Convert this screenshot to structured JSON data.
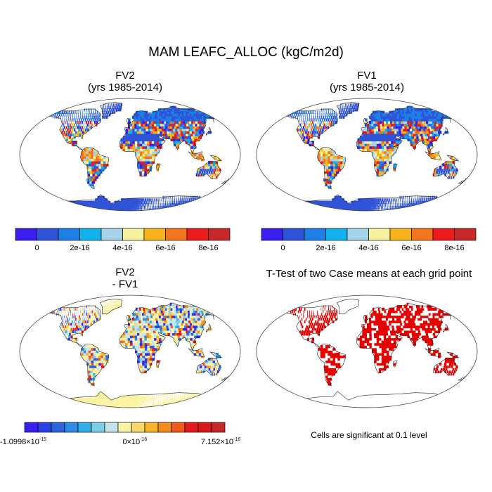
{
  "title": "MAM LEAFC_ALLOC (kgC/m2d)",
  "panels": [
    {
      "title_line1": "FV2",
      "title_line2": "(yrs 1985-2014)"
    },
    {
      "title_line1": "FV1",
      "title_line2": "(yrs 1985-2014)"
    },
    {
      "title_line1": "FV2",
      "title_line2": "- FV1"
    },
    {
      "title_line1": "T-Test of two Case means at each grid point",
      "title_line2": ""
    }
  ],
  "note": "Cells are significant at 0.1 level",
  "colorbar_top": {
    "colors": [
      "#3b1ef0",
      "#2f54d8",
      "#1e7fe6",
      "#12b2ec",
      "#a6d3ea",
      "#f6f1a0",
      "#f6b31c",
      "#f3751e",
      "#ed1b1b",
      "#c9282b"
    ],
    "tick_labels": [
      "0",
      "2e-16",
      "4e-16",
      "6e-16",
      "8e-16"
    ]
  },
  "colorbar_diff": {
    "colors": [
      "#3b1ef0",
      "#2a3fe6",
      "#2c64db",
      "#2f8be6",
      "#34aeeb",
      "#7dcde9",
      "#c4e4ef",
      "#fbf3a3",
      "#f9d76a",
      "#f8b52b",
      "#f58c1f",
      "#f05a1c",
      "#e51b1b",
      "#d31b1b",
      "#c9282b"
    ],
    "tick_labels": [
      "-1.0998×10",
      "0×10",
      "7.152×10"
    ],
    "tick_exponents": [
      "-15",
      "-16",
      "-16"
    ]
  },
  "chart_data": [
    {
      "type": "heatmap",
      "title": "FV2 (yrs 1985-2014)",
      "colorbar_range": [
        -1e-16,
        9e-16
      ],
      "units": "kgC/m2d"
    },
    {
      "type": "heatmap",
      "title": "FV1 (yrs 1985-2014)",
      "colorbar_range": [
        -1e-16,
        9e-16
      ],
      "units": "kgC/m2d"
    },
    {
      "type": "heatmap",
      "title": "FV2 - FV1",
      "colorbar_range": [
        -1.0998e-15,
        7.152e-16
      ],
      "units": "kgC/m2d"
    },
    {
      "type": "heatmap",
      "title": "T-Test of two Case means at each grid point",
      "significance_level": 0.1
    }
  ]
}
